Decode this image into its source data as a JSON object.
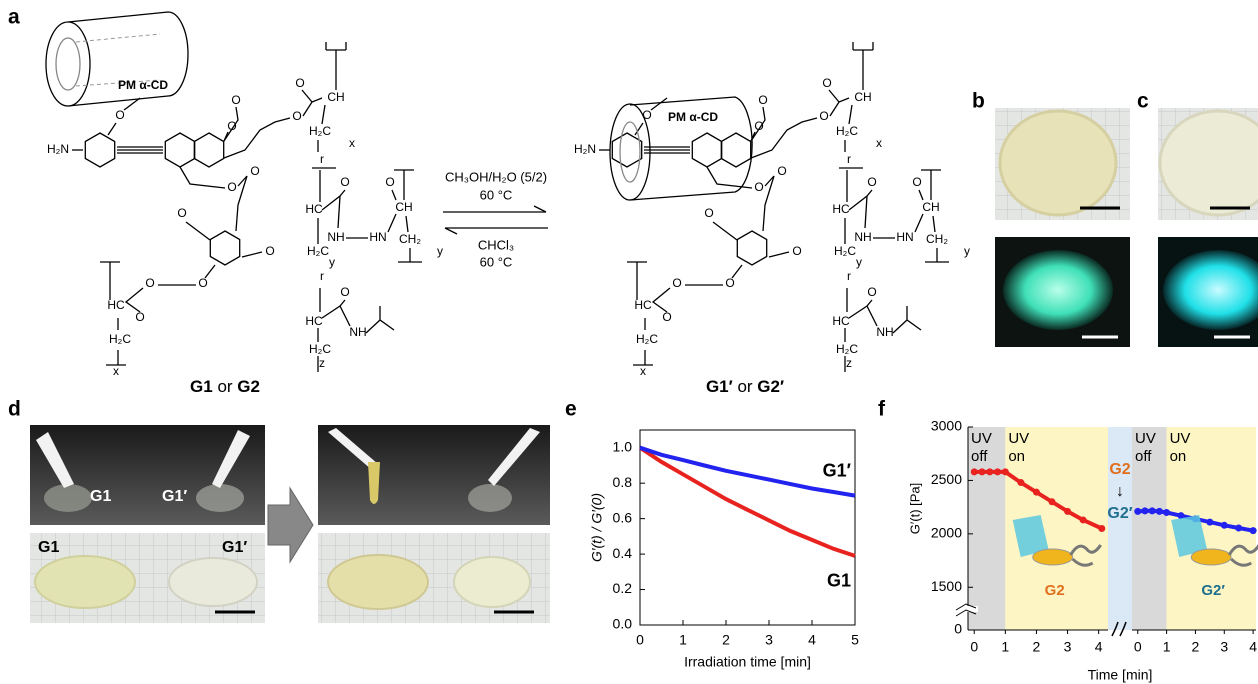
{
  "panel_labels": [
    "a",
    "b",
    "c",
    "d",
    "e",
    "f"
  ],
  "scheme": {
    "host": "PM α-CD",
    "atoms": [
      "H₂N",
      "O",
      "CH",
      "H₂C",
      "HC",
      "NH",
      "HN",
      "CH₂",
      "x",
      "y",
      "r",
      "z"
    ],
    "forward_conditions": [
      "CH₃OH/H₂O (5/2)",
      "60 °C"
    ],
    "reverse_conditions": [
      "CHCl₃",
      "60 °C"
    ],
    "left_caption": [
      "G1",
      "or",
      "G2"
    ],
    "right_caption": [
      "G1′",
      "or",
      "G2′"
    ]
  },
  "photos_d": {
    "top_labels": [
      "G1",
      "G1′"
    ],
    "bottom_labels": [
      "G1",
      "G1′"
    ]
  },
  "chart_data": [
    {
      "type": "line",
      "ylabel": "G′(t) / G′(0)",
      "xlabel": "Irradiation time [min]",
      "x": [
        0,
        0.5,
        1,
        1.5,
        2,
        2.5,
        3,
        3.5,
        4,
        4.5,
        5
      ],
      "series": [
        {
          "name": "G1",
          "color": "#e8231f",
          "values": [
            1,
            0.92,
            0.85,
            0.78,
            0.71,
            0.65,
            0.59,
            0.53,
            0.48,
            0.43,
            0.39
          ]
        },
        {
          "name": "G1′",
          "color": "#2323f0",
          "values": [
            1,
            0.96,
            0.93,
            0.9,
            0.87,
            0.845,
            0.82,
            0.795,
            0.77,
            0.75,
            0.73
          ]
        }
      ],
      "xlim": [
        0,
        5
      ],
      "ylim": [
        0,
        1.1
      ],
      "xticks": [
        0,
        1,
        2,
        3,
        4,
        5
      ],
      "yticks": [
        {
          "value": 0,
          "label": "0.0"
        },
        0.2,
        0.4,
        0.6,
        0.8,
        {
          "value": 1,
          "label": "1.0"
        }
      ]
    },
    {
      "type": "broken_line",
      "ylabel": "G′(t) [Pa]",
      "xlabel": "Time [min]",
      "ylim": [
        1100,
        3000
      ],
      "yticks": [
        1500,
        2000,
        2500,
        3000
      ],
      "y_break_tick": 0,
      "panels": [
        {
          "xlim": [
            -0.2,
            4.3
          ],
          "xticks": [
            0,
            1,
            2,
            3,
            4
          ],
          "shading": [
            {
              "from": -0.2,
              "to": 1,
              "color": "#d9d9d9",
              "label": [
                "UV",
                "off"
              ]
            },
            {
              "from": 1,
              "to": 4.3,
              "color": "#fdf6c4",
              "label": [
                "UV",
                "on"
              ]
            }
          ],
          "series": [
            {
              "name": "G2",
              "color": "#e8231f",
              "x": [
                0,
                0.25,
                0.5,
                0.75,
                1,
                1.5,
                2,
                2.5,
                3,
                3.5,
                4.1
              ],
              "values": [
                2580,
                2580,
                2580,
                2580,
                2580,
                2480,
                2390,
                2300,
                2210,
                2130,
                2050
              ]
            }
          ]
        },
        {
          "xlim": [
            -0.2,
            4.1
          ],
          "xticks": [
            0,
            1,
            2,
            3,
            4
          ],
          "shading": [
            {
              "from": -0.2,
              "to": 1,
              "color": "#d9d9d9",
              "label": [
                "UV",
                "off"
              ]
            },
            {
              "from": 1,
              "to": 4.1,
              "color": "#fdf6c4",
              "label": [
                "UV",
                "on"
              ]
            }
          ],
          "series": [
            {
              "name": "G2′",
              "color": "#2323f0",
              "x": [
                0,
                0.25,
                0.5,
                0.75,
                1,
                1.5,
                2,
                2.5,
                3,
                3.5,
                4
              ],
              "values": [
                2210,
                2215,
                2215,
                2210,
                2200,
                2170,
                2140,
                2110,
                2080,
                2055,
                2030
              ]
            }
          ]
        }
      ],
      "transition": [
        "G2",
        "↓",
        "G2′"
      ],
      "transition_color": "#dbe8f5"
    }
  ]
}
